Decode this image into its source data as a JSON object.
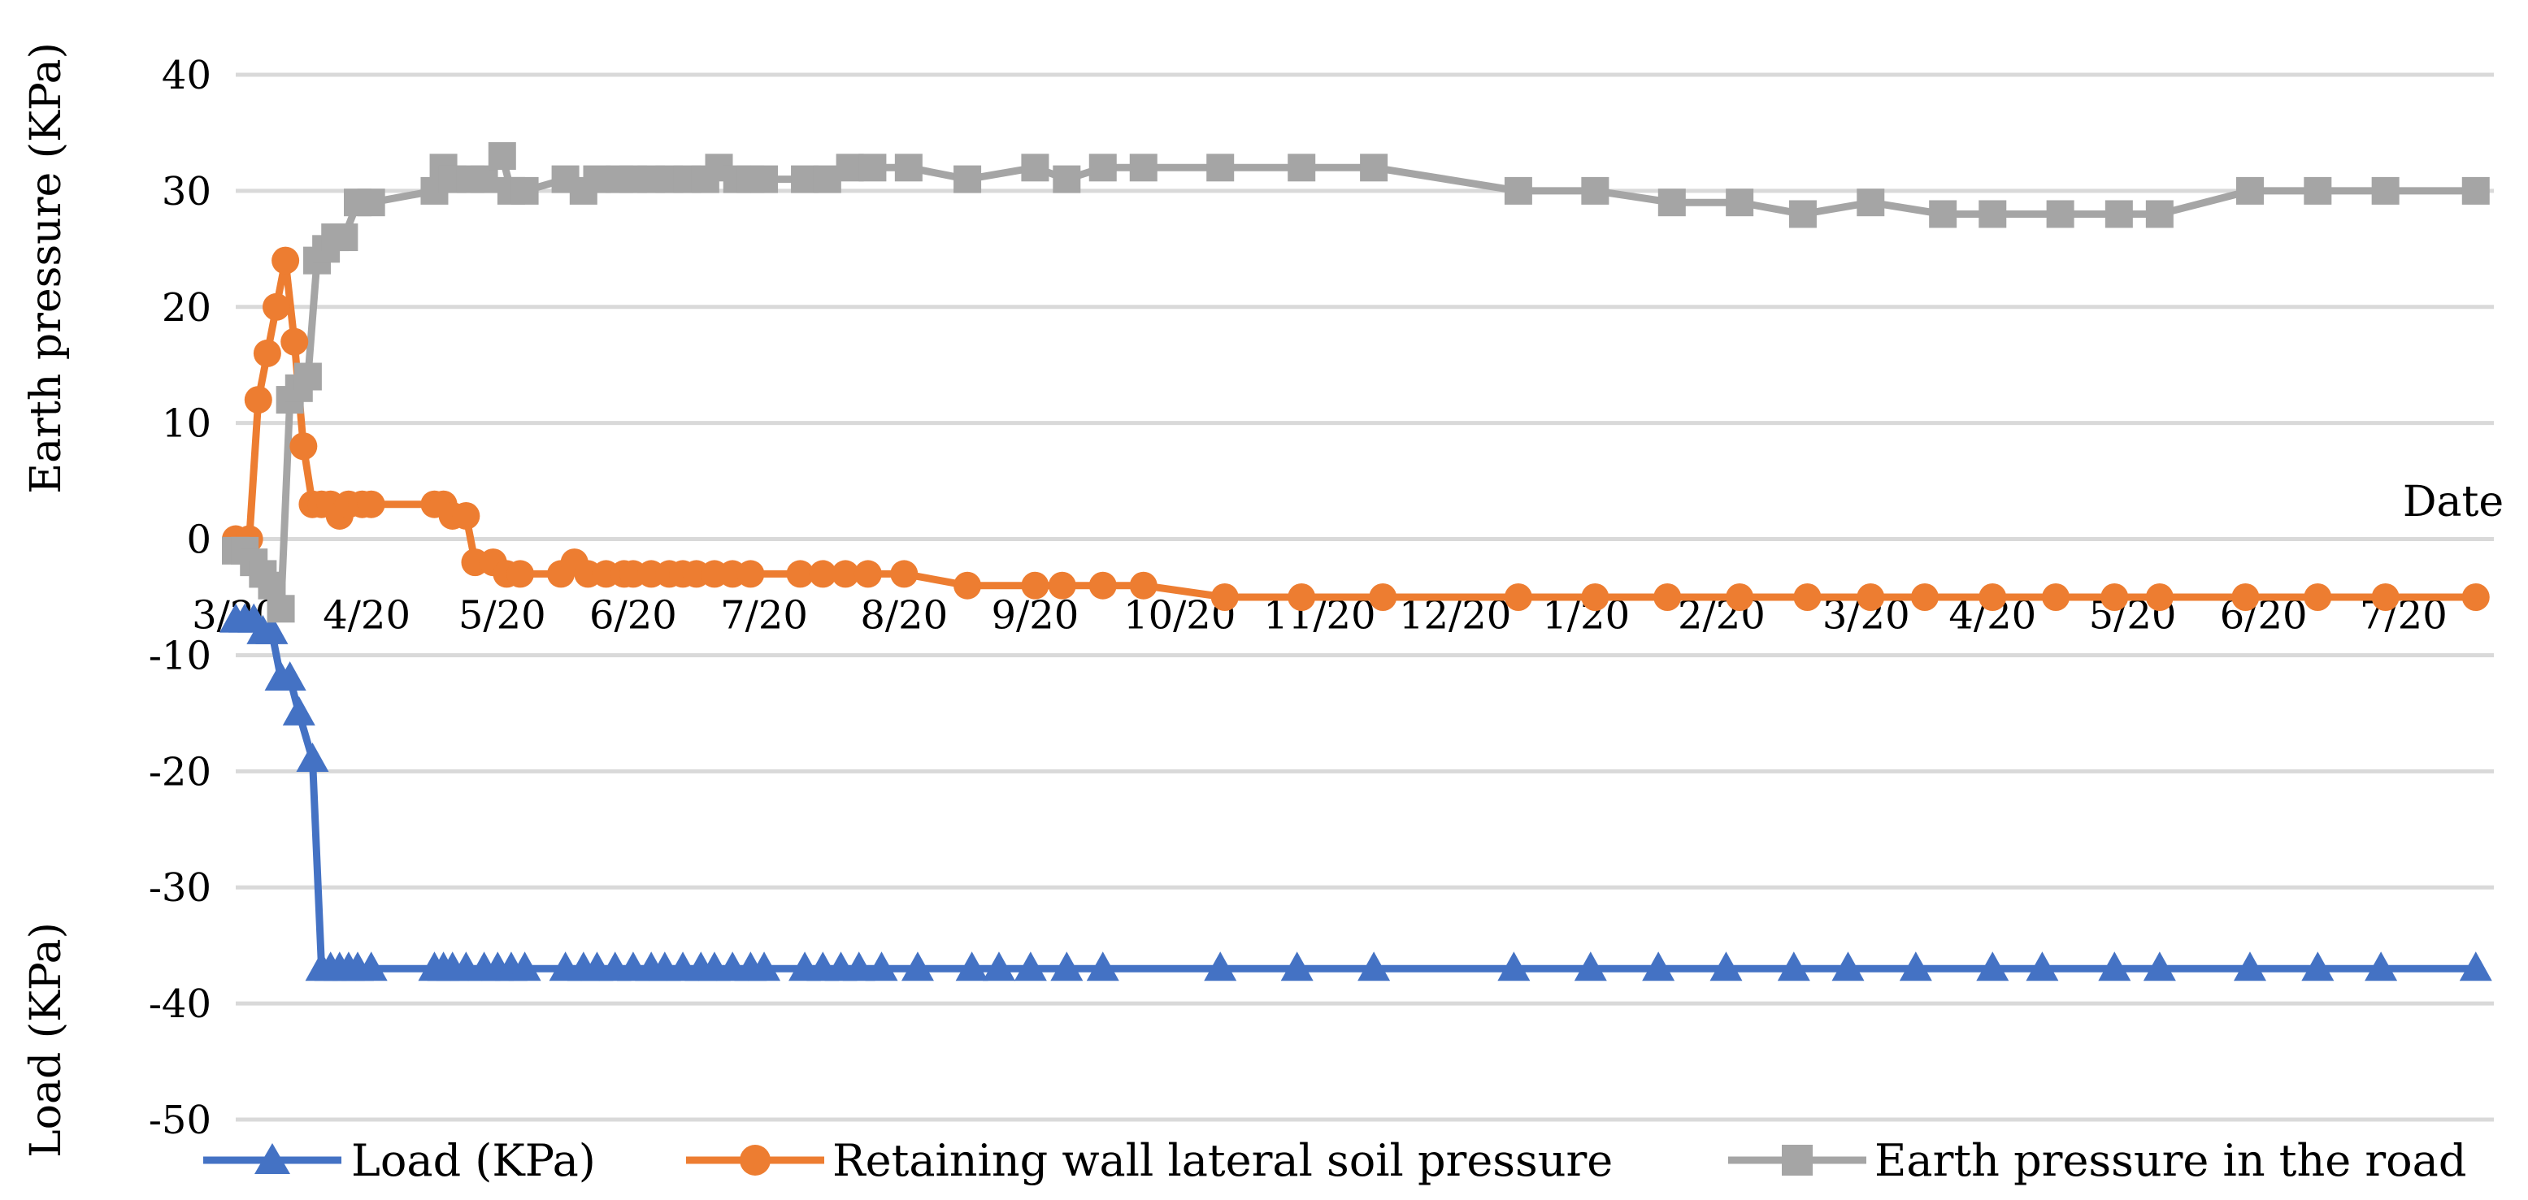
{
  "chart_data": {
    "type": "line",
    "title": "",
    "ylabel_upper": "Earth pressure (KPa)",
    "ylabel_lower": "Load (KPa)",
    "xlabel": "Date",
    "ylim": [
      -50,
      40
    ],
    "yticks": [
      40,
      30,
      20,
      10,
      0,
      -10,
      -20,
      -30,
      -40,
      -50
    ],
    "ytick_labels": [
      "40",
      "30",
      "20",
      "10",
      "0",
      "-10",
      "-20",
      "-30",
      "-40",
      "-50"
    ],
    "xlim": [
      0,
      500
    ],
    "xtick_positions": [
      0,
      29,
      59,
      88,
      117,
      148,
      177,
      209,
      240,
      270,
      299,
      329,
      361,
      389,
      420,
      449,
      480
    ],
    "xtick_labels": [
      "3/20",
      "4/20",
      "5/20",
      "6/20",
      "7/20",
      "8/20",
      "9/20",
      "10/20",
      "11/20",
      "12/20",
      "1/20",
      "2/20",
      "3/20",
      "4/20",
      "5/20",
      "6/20",
      "7/20"
    ],
    "grid": true,
    "legend_position": "bottom",
    "series": [
      {
        "name": "Load (KPa)",
        "color": "#4472c4",
        "marker": "triangle",
        "x": [
          0,
          2,
          4,
          6,
          8,
          10,
          12,
          14,
          17,
          19,
          21,
          23,
          25,
          27,
          30,
          44,
          46,
          48,
          51,
          55,
          58,
          61,
          64,
          73,
          77,
          80,
          84,
          88,
          92,
          95,
          99,
          103,
          106,
          110,
          114,
          117,
          126,
          130,
          134,
          138,
          143,
          151,
          163,
          169,
          176,
          184,
          192,
          218,
          235,
          252,
          283,
          300,
          315,
          330,
          345,
          357,
          372,
          389,
          400,
          416,
          426,
          446,
          461,
          475,
          496
        ],
        "y": [
          -7,
          -7,
          -7,
          -8,
          -8,
          -12,
          -12,
          -15,
          -19,
          -37,
          -37,
          -37,
          -37,
          -37,
          -37,
          -37,
          -37,
          -37,
          -37,
          -37,
          -37,
          -37,
          -37,
          -37,
          -37,
          -37,
          -37,
          -37,
          -37,
          -37,
          -37,
          -37,
          -37,
          -37,
          -37,
          -37,
          -37,
          -37,
          -37,
          -37,
          -37,
          -37,
          -37,
          -37,
          -37,
          -37,
          -37,
          -37,
          -37,
          -37,
          -37,
          -37,
          -37,
          -37,
          -37,
          -37,
          -37,
          -37,
          -37,
          -37,
          -37,
          -37,
          -37,
          -37,
          -37
        ]
      },
      {
        "name": "Retaining wall lateral soil pressure",
        "color": "#ed7d31",
        "marker": "circle",
        "x": [
          0,
          3,
          5,
          7,
          9,
          11,
          13,
          15,
          17,
          19,
          21,
          23,
          25,
          28,
          30,
          44,
          46,
          48,
          51,
          53,
          57,
          60,
          63,
          72,
          75,
          78,
          82,
          86,
          88,
          92,
          96,
          99,
          102,
          106,
          110,
          114,
          125,
          130,
          135,
          140,
          148,
          162,
          177,
          183,
          192,
          201,
          219,
          236,
          254,
          284,
          301,
          317,
          333,
          348,
          362,
          374,
          389,
          403,
          416,
          426,
          445,
          461,
          476,
          496
        ],
        "y": [
          0,
          0,
          12,
          16,
          20,
          24,
          17,
          8,
          3,
          3,
          3,
          2,
          3,
          3,
          3,
          3,
          3,
          2,
          2,
          -2,
          -2,
          -3,
          -3,
          -3,
          -2,
          -3,
          -3,
          -3,
          -3,
          -3,
          -3,
          -3,
          -3,
          -3,
          -3,
          -3,
          -3,
          -3,
          -3,
          -3,
          -3,
          -4,
          -4,
          -4,
          -4,
          -4,
          -5,
          -5,
          -5,
          -5,
          -5,
          -5,
          -5,
          -5,
          -5,
          -5,
          -5,
          -5,
          -5,
          -5,
          -5,
          -5,
          -5,
          -5
        ]
      },
      {
        "name": "Earth pressure in the road",
        "color": "#a5a5a5",
        "marker": "square",
        "x": [
          0,
          2,
          4,
          6,
          8,
          10,
          12,
          14,
          16,
          18,
          20,
          22,
          24,
          27,
          30,
          44,
          46,
          48,
          52,
          55,
          59,
          61,
          64,
          73,
          77,
          80,
          85,
          88,
          92,
          96,
          100,
          104,
          107,
          111,
          114,
          117,
          126,
          131,
          136,
          141,
          149,
          162,
          177,
          184,
          192,
          201,
          218,
          236,
          252,
          284,
          301,
          318,
          333,
          347,
          362,
          378,
          389,
          404,
          417,
          426,
          446,
          461,
          476,
          496
        ],
        "y": [
          -1,
          -1,
          -2,
          -3,
          -4,
          -6,
          12,
          13,
          14,
          24,
          25,
          26,
          26,
          29,
          29,
          30,
          32,
          31,
          31,
          31,
          33,
          30,
          30,
          31,
          30,
          31,
          31,
          31,
          31,
          31,
          31,
          31,
          32,
          31,
          31,
          31,
          31,
          31,
          32,
          32,
          32,
          31,
          32,
          31,
          32,
          32,
          32,
          32,
          32,
          30,
          30,
          29,
          29,
          28,
          29,
          28,
          28,
          28,
          28,
          28,
          30,
          30,
          30,
          30
        ]
      }
    ]
  }
}
